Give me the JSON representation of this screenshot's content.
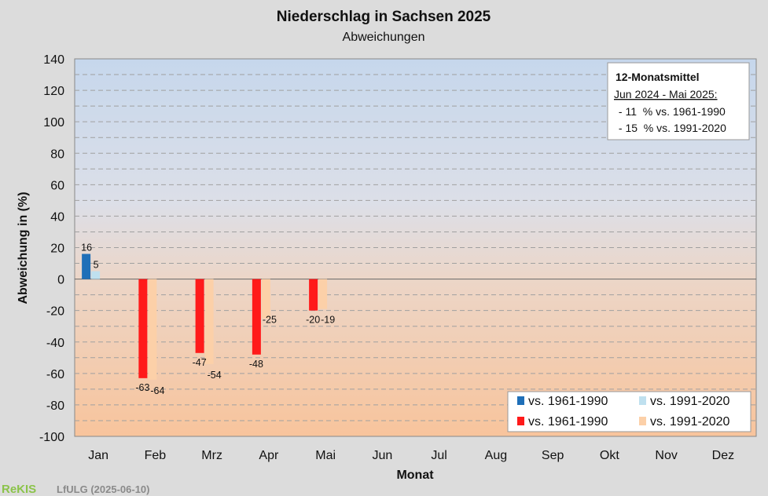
{
  "chart_data": {
    "type": "bar",
    "title": "Niederschlag  in Sachsen 2025",
    "subtitle": "Abweichungen",
    "xlabel": "Monat",
    "ylabel": "Abweichung in (%)",
    "ylim": [
      -100,
      140
    ],
    "yticks": [
      140,
      120,
      100,
      80,
      60,
      40,
      20,
      0,
      -20,
      -40,
      -60,
      -80,
      -100
    ],
    "grid": true,
    "categories": [
      "Jan",
      "Feb",
      "Mrz",
      "Apr",
      "Mai",
      "Jun",
      "Jul",
      "Aug",
      "Sep",
      "Okt",
      "Nov",
      "Dez"
    ],
    "series": [
      {
        "name": "vs. 1961-1990",
        "values": [
          16,
          -63,
          -47,
          -48,
          -20,
          null,
          null,
          null,
          null,
          null,
          null,
          null
        ],
        "pos_color": "#1f6fb8",
        "neg_color": "#ff1a1a"
      },
      {
        "name": "vs. 1991-2020",
        "values": [
          5,
          -64,
          -54,
          -25,
          -19,
          null,
          null,
          null,
          null,
          null,
          null,
          null
        ],
        "pos_color": "#bfe0ef",
        "neg_color": "#fcd0a8"
      }
    ],
    "legend": {
      "placement": "bottom-right",
      "entries": [
        {
          "label": "vs. 1961-1990",
          "color": "#1f6fb8"
        },
        {
          "label": "vs. 1991-2020",
          "color": "#bfe0ef"
        },
        {
          "label": "vs. 1961-1990",
          "color": "#ff1a1a"
        },
        {
          "label": "vs. 1991-2020",
          "color": "#fcd0a8"
        }
      ]
    },
    "annotation": {
      "placement": "top-right",
      "title": "12-Monatsmittel",
      "period": "Jun 2024 - Mai 2025:",
      "lines": [
        " - 11  % vs. 1961-1990",
        " - 15  % vs. 1991-2020"
      ]
    }
  },
  "footer": {
    "logo": "ReKIS",
    "source": "LfULG (2025-06-10)"
  }
}
